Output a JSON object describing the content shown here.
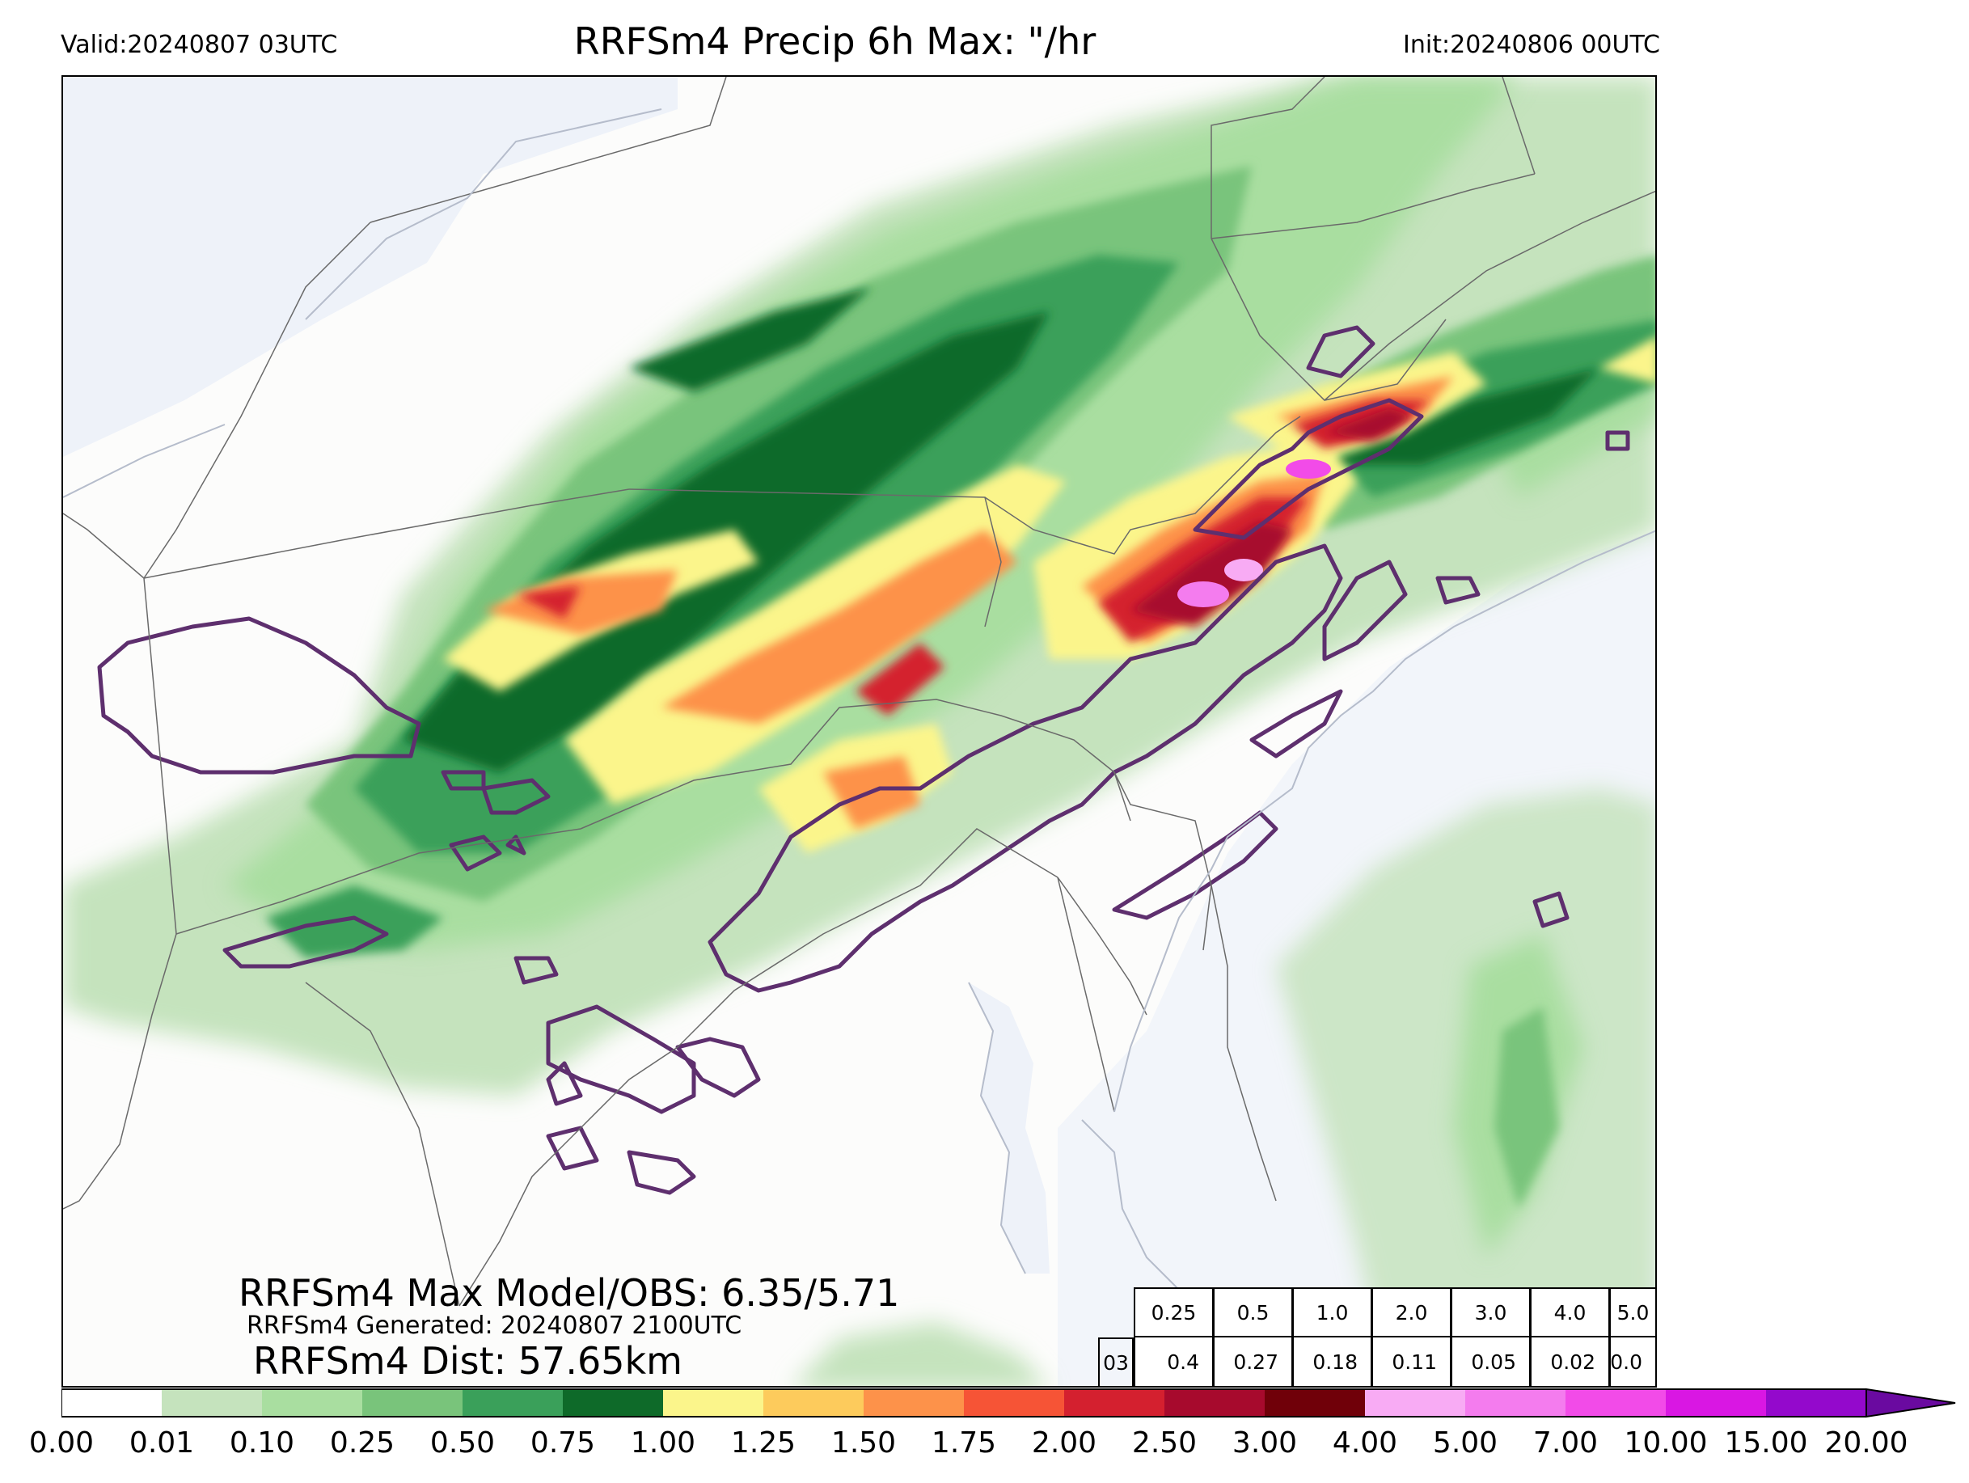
{
  "header": {
    "valid": "Valid:20240807 03UTC",
    "title": "RRFSm4 Precip 6h Max: \"/hr",
    "init": "Init:20240806 00UTC"
  },
  "stats": {
    "max_line": "RRFSm4 Max Model/OBS: 6.35/5.71",
    "generated_line": "RRFSm4 Generated: 20240807 2100UTC",
    "dist_line": "RRFSm4 Dist: 57.65km"
  },
  "threshold_table": {
    "thresholds": [
      "0.25",
      "0.5",
      "1.0",
      "2.0",
      "3.0",
      "4.0",
      "5.0"
    ],
    "row_label": "03",
    "values": [
      "0.4",
      "0.27",
      "0.18",
      "0.11",
      "0.05",
      "0.02",
      "0.0"
    ]
  },
  "colorbar": {
    "labels": [
      "0.00",
      "0.01",
      "0.10",
      "0.25",
      "0.50",
      "0.75",
      "1.00",
      "1.25",
      "1.50",
      "1.75",
      "2.00",
      "2.50",
      "3.00",
      "4.00",
      "5.00",
      "7.00",
      "10.00",
      "15.00",
      "20.00"
    ],
    "colors": [
      "#ffffff",
      "#c5e3bd",
      "#a9dea0",
      "#79c47b",
      "#3aa05a",
      "#0e6a29",
      "#fbf58b",
      "#fdcb5c",
      "#fd924a",
      "#f65436",
      "#d4202f",
      "#a70a2d",
      "#700009",
      "#f8abf4",
      "#f47cee",
      "#f24be8",
      "#d917e3",
      "#9409cc"
    ],
    "extend_color": "#6a0aa0"
  },
  "map_colors": {
    "ocean": "#f2f5fa",
    "land": "#fcfcfb",
    "obs_contour": "#5e2f6e",
    "boundary": "#777777"
  }
}
